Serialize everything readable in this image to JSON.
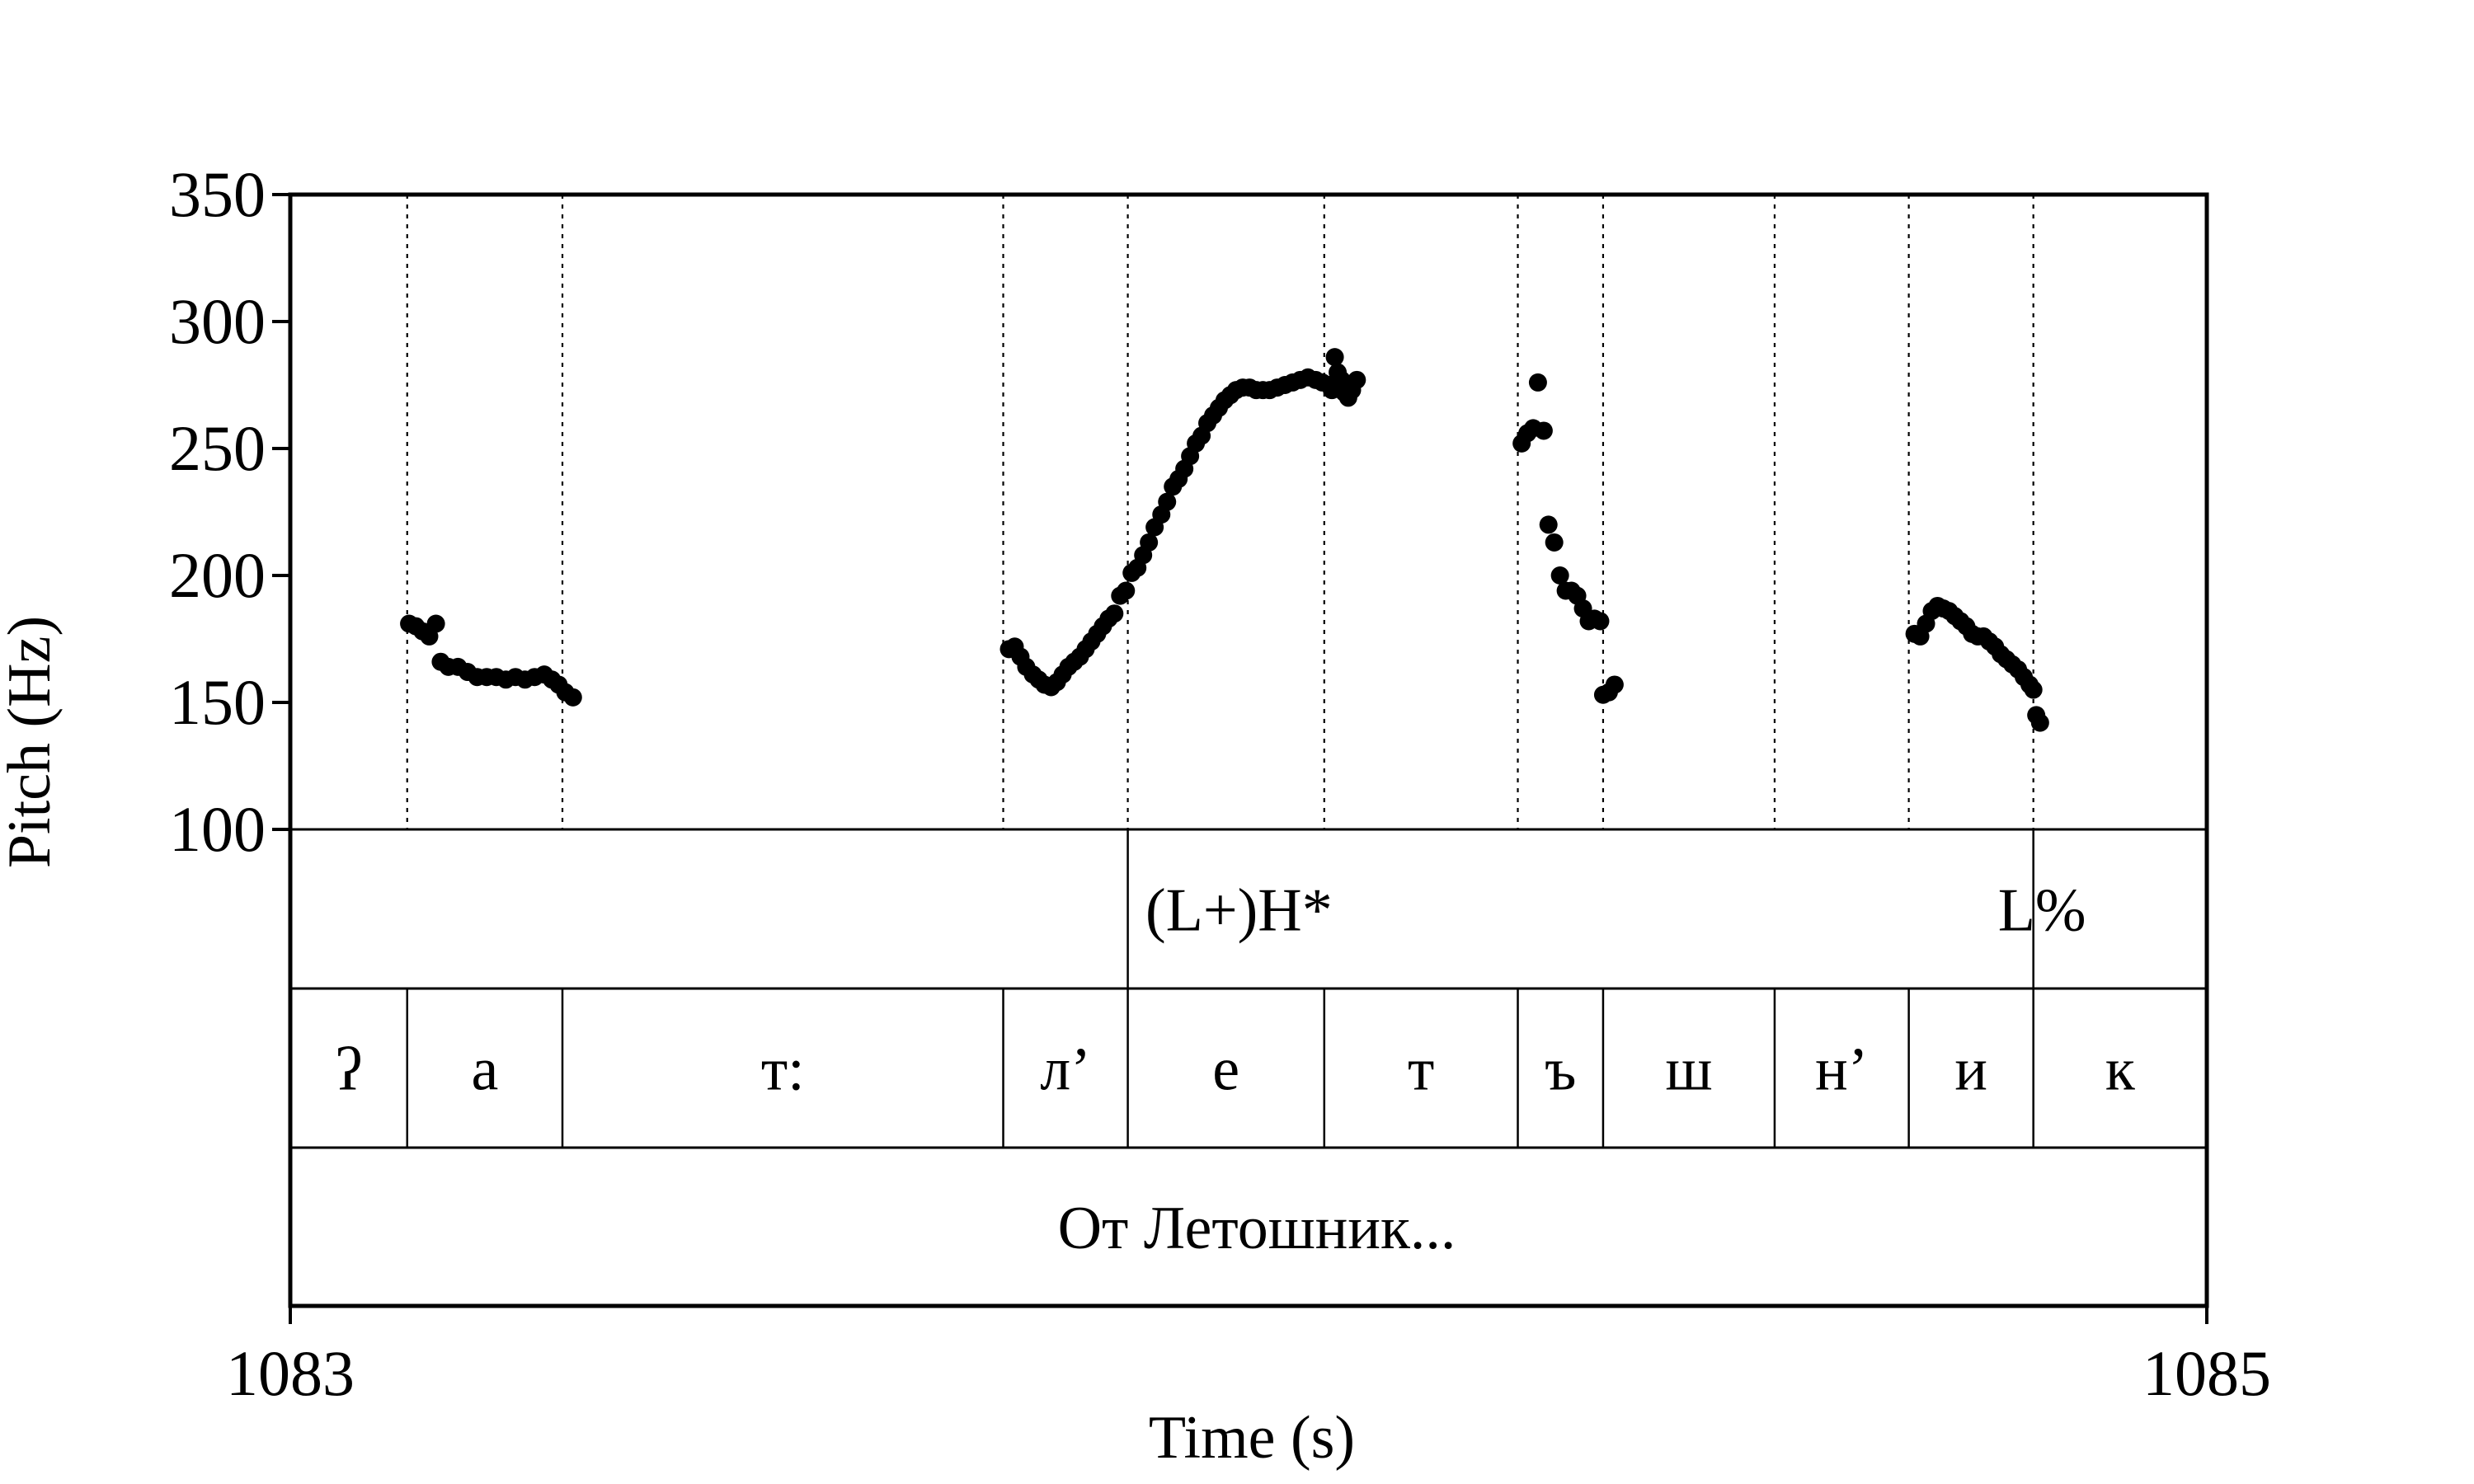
{
  "chart_data": {
    "type": "scatter",
    "xlabel": "Time (s)",
    "ylabel": "Pitch (Hz)",
    "xlim": [
      1083,
      1085
    ],
    "ylim": [
      100,
      350
    ],
    "x_ticks": [
      "1083",
      "1085"
    ],
    "y_ticks": [
      "100",
      "150",
      "200",
      "250",
      "300",
      "350"
    ],
    "grid": false,
    "series": [
      {
        "color": "#000000",
        "points": [
          [
            1083.124,
            181
          ],
          [
            1083.131,
            180
          ],
          [
            1083.138,
            178
          ],
          [
            1083.145,
            176
          ],
          [
            1083.152,
            181
          ],
          [
            1083.157,
            166
          ],
          [
            1083.165,
            164
          ],
          [
            1083.175,
            164
          ],
          [
            1083.185,
            162
          ],
          [
            1083.195,
            160
          ],
          [
            1083.205,
            160
          ],
          [
            1083.215,
            160
          ],
          [
            1083.225,
            159
          ],
          [
            1083.235,
            160
          ],
          [
            1083.245,
            159
          ],
          [
            1083.255,
            160
          ],
          [
            1083.265,
            161
          ],
          [
            1083.273,
            159
          ],
          [
            1083.28,
            157
          ],
          [
            1083.287,
            154
          ],
          [
            1083.295,
            152
          ],
          [
            1083.75,
            171
          ],
          [
            1083.756,
            172
          ],
          [
            1083.762,
            168
          ],
          [
            1083.768,
            164
          ],
          [
            1083.775,
            161
          ],
          [
            1083.781,
            159
          ],
          [
            1083.787,
            157
          ],
          [
            1083.794,
            156
          ],
          [
            1083.8,
            158
          ],
          [
            1083.806,
            161
          ],
          [
            1083.812,
            164
          ],
          [
            1083.818,
            166
          ],
          [
            1083.824,
            168
          ],
          [
            1083.83,
            171
          ],
          [
            1083.836,
            174
          ],
          [
            1083.842,
            177
          ],
          [
            1083.848,
            180
          ],
          [
            1083.854,
            183
          ],
          [
            1083.86,
            185
          ],
          [
            1083.866,
            192
          ],
          [
            1083.872,
            194
          ],
          [
            1083.878,
            201
          ],
          [
            1083.884,
            203
          ],
          [
            1083.89,
            208
          ],
          [
            1083.896,
            213
          ],
          [
            1083.902,
            219
          ],
          [
            1083.909,
            224
          ],
          [
            1083.915,
            229
          ],
          [
            1083.921,
            235
          ],
          [
            1083.927,
            238
          ],
          [
            1083.933,
            242
          ],
          [
            1083.939,
            247
          ],
          [
            1083.945,
            252
          ],
          [
            1083.951,
            255
          ],
          [
            1083.957,
            260
          ],
          [
            1083.963,
            263
          ],
          [
            1083.969,
            266
          ],
          [
            1083.975,
            269
          ],
          [
            1083.981,
            271
          ],
          [
            1083.987,
            273
          ],
          [
            1083.994,
            274
          ],
          [
            1084.001,
            274
          ],
          [
            1084.008,
            273
          ],
          [
            1084.015,
            273
          ],
          [
            1084.022,
            273
          ],
          [
            1084.03,
            274
          ],
          [
            1084.038,
            275
          ],
          [
            1084.046,
            276
          ],
          [
            1084.054,
            277
          ],
          [
            1084.062,
            278
          ],
          [
            1084.07,
            277
          ],
          [
            1084.077,
            276
          ],
          [
            1084.084,
            275
          ],
          [
            1084.087,
            273
          ],
          [
            1084.09,
            286
          ],
          [
            1084.093,
            280
          ],
          [
            1084.097,
            277
          ],
          [
            1084.1,
            272
          ],
          [
            1084.104,
            270
          ],
          [
            1084.108,
            273
          ],
          [
            1084.113,
            277
          ],
          [
            1084.285,
            252
          ],
          [
            1084.291,
            256
          ],
          [
            1084.297,
            258
          ],
          [
            1084.302,
            276
          ],
          [
            1084.308,
            257
          ],
          [
            1084.313,
            220
          ],
          [
            1084.319,
            213
          ],
          [
            1084.325,
            200
          ],
          [
            1084.331,
            194
          ],
          [
            1084.337,
            194
          ],
          [
            1084.343,
            192
          ],
          [
            1084.349,
            187
          ],
          [
            1084.355,
            182
          ],
          [
            1084.361,
            183
          ],
          [
            1084.367,
            182
          ],
          [
            1084.37,
            153
          ],
          [
            1084.376,
            154
          ],
          [
            1084.382,
            157
          ],
          [
            1084.695,
            177
          ],
          [
            1084.701,
            176
          ],
          [
            1084.707,
            181
          ],
          [
            1084.713,
            186
          ],
          [
            1084.719,
            188
          ],
          [
            1084.725,
            187
          ],
          [
            1084.731,
            186
          ],
          [
            1084.737,
            184
          ],
          [
            1084.743,
            182
          ],
          [
            1084.749,
            180
          ],
          [
            1084.755,
            177
          ],
          [
            1084.761,
            176
          ],
          [
            1084.767,
            176
          ],
          [
            1084.773,
            174
          ],
          [
            1084.779,
            172
          ],
          [
            1084.785,
            169
          ],
          [
            1084.791,
            167
          ],
          [
            1084.797,
            165
          ],
          [
            1084.803,
            163
          ],
          [
            1084.809,
            160
          ],
          [
            1084.815,
            157
          ],
          [
            1084.819,
            155
          ],
          [
            1084.822,
            145
          ],
          [
            1084.826,
            142
          ]
        ]
      }
    ],
    "boundaries": [
      1083.122,
      1083.284,
      1083.744,
      1083.874,
      1084.079,
      1084.281,
      1084.37,
      1084.549,
      1084.689,
      1084.819
    ],
    "tiers": [
      {
        "name": "tones",
        "boundaries": [
          1083.874,
          1084.819
        ],
        "labels": [
          {
            "text": "(L+)H*",
            "t": 1083.99
          },
          {
            "text": "L%",
            "t": 1084.828
          }
        ]
      },
      {
        "name": "segments",
        "boundaries": [
          1083.122,
          1083.284,
          1083.744,
          1083.874,
          1084.079,
          1084.281,
          1084.37,
          1084.549,
          1084.689,
          1084.819
        ],
        "labels": [
          "ʔ",
          "а",
          "т:",
          "л’",
          "е",
          "т",
          "ъ",
          "ш",
          "н’",
          "и",
          "к"
        ]
      },
      {
        "name": "words",
        "boundaries": [],
        "labels": [
          "От Летошник..."
        ]
      }
    ]
  }
}
